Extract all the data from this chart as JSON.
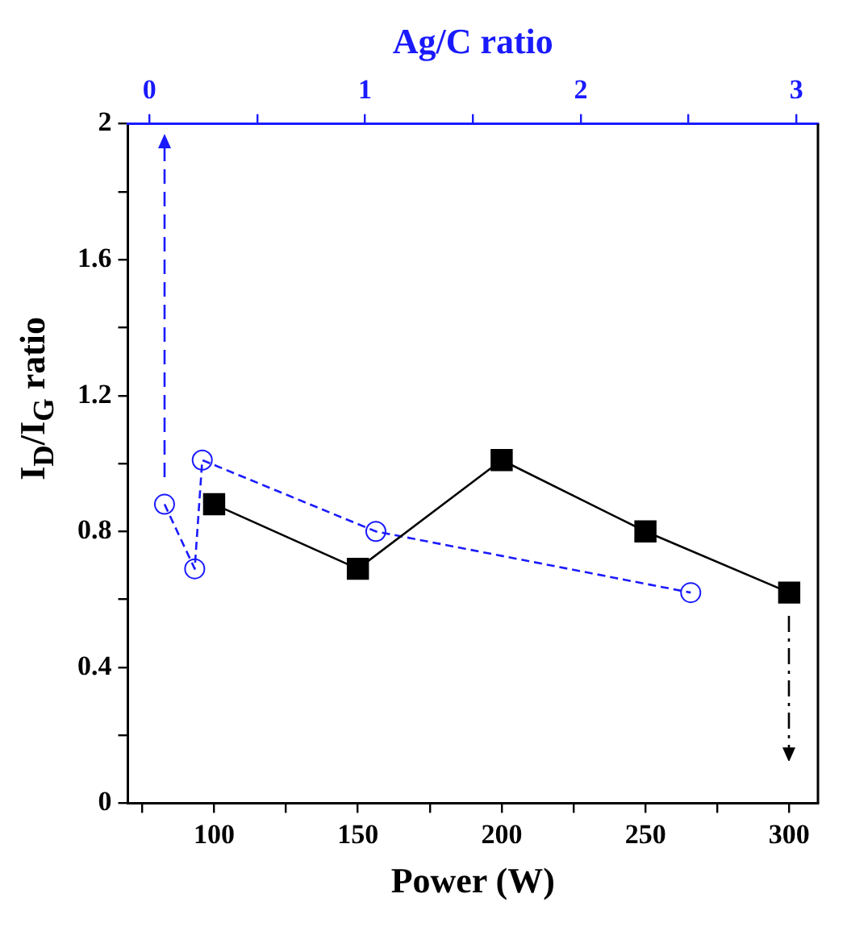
{
  "chart_data": {
    "type": "line",
    "xlabel": "Power (W)",
    "ylabel": "I$_{D}$/I$_{G}$ ratio",
    "x2label": "Ag/C ratio",
    "xlim": [
      70,
      310
    ],
    "xticks": [
      {
        "value": 75,
        "label": null
      },
      100,
      {
        "value": 125,
        "label": null
      },
      150,
      {
        "value": 175,
        "label": null
      },
      200,
      {
        "value": 225,
        "label": null
      },
      250,
      {
        "value": 275,
        "label": null
      },
      300
    ],
    "x2lim": [
      -0.1,
      3.1
    ],
    "x2ticks": [
      0,
      {
        "value": 0.5,
        "label": null
      },
      1,
      {
        "value": 1.5,
        "label": null
      },
      2,
      {
        "value": 2.5,
        "label": null
      },
      3
    ],
    "ylim": [
      0,
      2
    ],
    "yticks": [
      0,
      {
        "value": 0.2,
        "label": null
      },
      0.4,
      {
        "value": 0.6,
        "label": null
      },
      0.8,
      {
        "value": 1.0,
        "label": null
      },
      1.2,
      {
        "value": 1.4,
        "label": null
      },
      1.6,
      {
        "value": 1.8,
        "label": null
      },
      2
    ],
    "grid": false,
    "legend": false,
    "series": [
      {
        "color": "#000000",
        "marker": "square",
        "line_style": "solid",
        "x": [
          100,
          150,
          200,
          250,
          300
        ],
        "values": [
          0.88,
          0.69,
          1.01,
          0.8,
          0.62
        ]
      },
      {
        "color": "#1a1aff",
        "marker": "circle",
        "line_style": "dashed",
        "axis": "x2",
        "x": [
          0.07,
          0.21,
          0.245,
          1.05,
          2.51
        ],
        "values": [
          0.88,
          0.69,
          1.01,
          0.8,
          0.62
        ]
      }
    ]
  }
}
